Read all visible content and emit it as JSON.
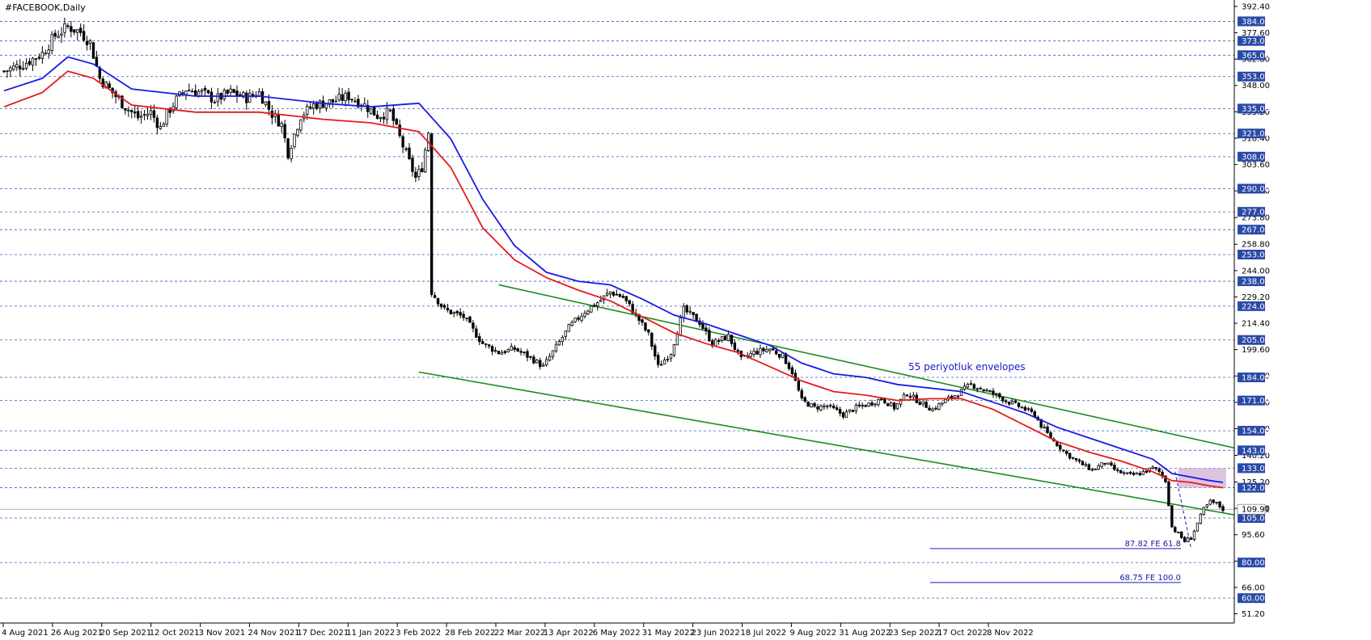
{
  "chart_data": {
    "type": "candlestick",
    "title": "#FACEBOOK,Daily",
    "ylim": [
      46.0,
      396.0
    ],
    "price_ticks": [
      392.4,
      377.6,
      362.8,
      348.0,
      333.2,
      318.4,
      303.6,
      288.8,
      273.8,
      258.8,
      244.0,
      229.2,
      214.4,
      199.6,
      184.8,
      170.0,
      155.2,
      140.2,
      125.2,
      110.4,
      95.6,
      80.8,
      66.0,
      51.2
    ],
    "horizontal_levels": [
      384.0,
      373.0,
      365.0,
      353.0,
      335.0,
      321.0,
      308.0,
      290.0,
      277.0,
      267.0,
      253.0,
      238.0,
      224.0,
      205.0,
      184.0,
      171.0,
      154.0,
      143.0,
      133.0,
      122.0,
      105.0,
      80.0,
      60.0
    ],
    "current_price": 109.91,
    "date_labels": [
      "4 Aug 2021",
      "26 Aug 2021",
      "20 Sep 2021",
      "12 Oct 2021",
      "3 Nov 2021",
      "24 Nov 2021",
      "17 Dec 2021",
      "11 Jan 2022",
      "3 Feb 2022",
      "28 Feb 2022",
      "22 Mar 2022",
      "13 Apr 2022",
      "6 May 2022",
      "31 May 2022",
      "23 Jun 2022",
      "18 Jul 2022",
      "9 Aug 2022",
      "31 Aug 2022",
      "23 Sep 2022",
      "17 Oct 2022",
      "8 Nov 2022"
    ],
    "close_path": [
      [
        0,
        356
      ],
      [
        6,
        360
      ],
      [
        12,
        366
      ],
      [
        16,
        376
      ],
      [
        20,
        381
      ],
      [
        24,
        378
      ],
      [
        27,
        372
      ],
      [
        30,
        352
      ],
      [
        34,
        344
      ],
      [
        38,
        336
      ],
      [
        42,
        330
      ],
      [
        46,
        333
      ],
      [
        49,
        324
      ],
      [
        51,
        332
      ],
      [
        54,
        340
      ],
      [
        57,
        346
      ],
      [
        62,
        344
      ],
      [
        66,
        340
      ],
      [
        71,
        344
      ],
      [
        76,
        341
      ],
      [
        80,
        344
      ],
      [
        84,
        332
      ],
      [
        87,
        326
      ],
      [
        89,
        310
      ],
      [
        93,
        331
      ],
      [
        97,
        337
      ],
      [
        103,
        339
      ],
      [
        108,
        342
      ],
      [
        113,
        337
      ],
      [
        117,
        331
      ],
      [
        121,
        333
      ],
      [
        125,
        314
      ],
      [
        129,
        296
      ],
      [
        131,
        302
      ],
      [
        133,
        322
      ],
      [
        134,
        232
      ],
      [
        138,
        222
      ],
      [
        144,
        218
      ],
      [
        150,
        203
      ],
      [
        155,
        198
      ],
      [
        160,
        200
      ],
      [
        165,
        195
      ],
      [
        169,
        190
      ],
      [
        173,
        201
      ],
      [
        177,
        212
      ],
      [
        182,
        221
      ],
      [
        186,
        226
      ],
      [
        190,
        232
      ],
      [
        194,
        229
      ],
      [
        198,
        219
      ],
      [
        202,
        208
      ],
      [
        205,
        190
      ],
      [
        209,
        198
      ],
      [
        213,
        222
      ],
      [
        218,
        215
      ],
      [
        222,
        203
      ],
      [
        227,
        207
      ],
      [
        231,
        194
      ],
      [
        235,
        198
      ],
      [
        240,
        200
      ],
      [
        244,
        196
      ],
      [
        247,
        187
      ],
      [
        250,
        171
      ],
      [
        254,
        167
      ],
      [
        258,
        168
      ],
      [
        263,
        163
      ],
      [
        267,
        167
      ],
      [
        271,
        169
      ],
      [
        275,
        172
      ],
      [
        279,
        167
      ],
      [
        283,
        175
      ],
      [
        287,
        170
      ],
      [
        291,
        166
      ],
      [
        295,
        171
      ],
      [
        299,
        175
      ],
      [
        303,
        180
      ],
      [
        307,
        177
      ],
      [
        311,
        174
      ],
      [
        315,
        170
      ],
      [
        319,
        167
      ],
      [
        323,
        163
      ],
      [
        325,
        157
      ],
      [
        328,
        150
      ],
      [
        333,
        141
      ],
      [
        337,
        136
      ],
      [
        341,
        132
      ],
      [
        345,
        136
      ],
      [
        349,
        131
      ],
      [
        353,
        129
      ],
      [
        356,
        130
      ],
      [
        360,
        133
      ],
      [
        362,
        131
      ],
      [
        364,
        126
      ],
      [
        366,
        100
      ],
      [
        368,
        96
      ],
      [
        370,
        92
      ],
      [
        372,
        94
      ],
      [
        374,
        102
      ],
      [
        376,
        110
      ],
      [
        378,
        114
      ],
      [
        380,
        113
      ],
      [
        382,
        110
      ]
    ],
    "series": [
      {
        "name": "",
        "color": "#1a1ae6",
        "points": [
          [
            0,
            345
          ],
          [
            12,
            352
          ],
          [
            20,
            364
          ],
          [
            28,
            360
          ],
          [
            40,
            346
          ],
          [
            60,
            342
          ],
          [
            80,
            342
          ],
          [
            100,
            338
          ],
          [
            115,
            336
          ],
          [
            130,
            338
          ],
          [
            140,
            318
          ],
          [
            150,
            284
          ],
          [
            160,
            258
          ],
          [
            170,
            243
          ],
          [
            180,
            238
          ],
          [
            190,
            236
          ],
          [
            200,
            228
          ],
          [
            210,
            219
          ],
          [
            220,
            214
          ],
          [
            230,
            208
          ],
          [
            240,
            202
          ],
          [
            250,
            192
          ],
          [
            260,
            186
          ],
          [
            270,
            184
          ],
          [
            280,
            180
          ],
          [
            290,
            178
          ],
          [
            300,
            176
          ],
          [
            310,
            170
          ],
          [
            320,
            164
          ],
          [
            330,
            156
          ],
          [
            340,
            150
          ],
          [
            350,
            144
          ],
          [
            360,
            138
          ],
          [
            366,
            130
          ],
          [
            372,
            128
          ],
          [
            378,
            126
          ],
          [
            382,
            125
          ]
        ]
      },
      {
        "name": "",
        "color": "#e61a1a",
        "points": [
          [
            0,
            336
          ],
          [
            12,
            344
          ],
          [
            20,
            356
          ],
          [
            28,
            352
          ],
          [
            40,
            337
          ],
          [
            60,
            333
          ],
          [
            80,
            333
          ],
          [
            100,
            329
          ],
          [
            115,
            327
          ],
          [
            130,
            322
          ],
          [
            140,
            302
          ],
          [
            150,
            268
          ],
          [
            160,
            250
          ],
          [
            170,
            240
          ],
          [
            180,
            233
          ],
          [
            190,
            227
          ],
          [
            200,
            218
          ],
          [
            210,
            209
          ],
          [
            220,
            203
          ],
          [
            230,
            198
          ],
          [
            240,
            190
          ],
          [
            250,
            182
          ],
          [
            260,
            176
          ],
          [
            270,
            174
          ],
          [
            280,
            171
          ],
          [
            290,
            172
          ],
          [
            300,
            172
          ],
          [
            310,
            166
          ],
          [
            320,
            157
          ],
          [
            330,
            148
          ],
          [
            340,
            142
          ],
          [
            350,
            137
          ],
          [
            360,
            131
          ],
          [
            366,
            126
          ],
          [
            372,
            125
          ],
          [
            378,
            123
          ],
          [
            382,
            122
          ]
        ]
      }
    ],
    "trendlines": [
      {
        "color": "#1e8a1e",
        "from": [
          155,
          236
        ],
        "to": [
          525,
          89
        ]
      },
      {
        "color": "#1e8a1e",
        "from": [
          130,
          187
        ],
        "to": [
          525,
          63
        ]
      }
    ],
    "projection_line": {
      "color": "#1a1ac8",
      "from": [
        367,
        131
      ],
      "to": [
        372,
        88
      ]
    },
    "fib_levels": [
      {
        "label": "87.82 FE 61.8",
        "value": 87.82
      },
      {
        "label": "68.75 FE 100.0",
        "value": 68.75
      }
    ],
    "zone": {
      "from_x": 368,
      "to_x": 383,
      "y_low": 122,
      "y_high": 133,
      "color": "#d8b8d8"
    },
    "annotation": "55 periyotluk envelopes"
  }
}
